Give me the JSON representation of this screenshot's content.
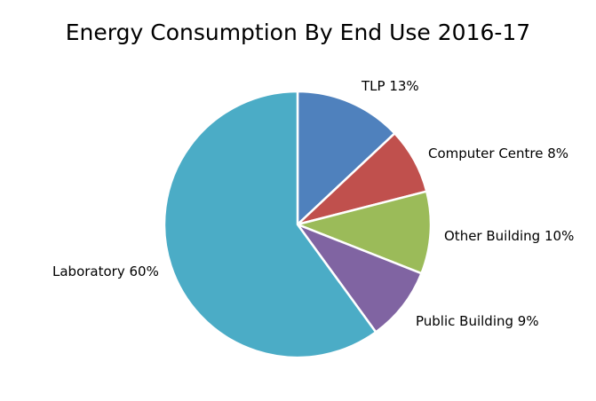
{
  "chart_data": {
    "type": "pie",
    "title": "Energy Consumption  By End Use 2016-17",
    "slices": [
      {
        "label": "TLP",
        "value": 13,
        "display": "TLP 13%",
        "color": "#4F81BD"
      },
      {
        "label": "Computer Centre",
        "value": 8,
        "display": "Computer Centre 8%",
        "color": "#C0504D"
      },
      {
        "label": "Other Building",
        "value": 10,
        "display": "Other Building 10%",
        "color": "#9BBB59"
      },
      {
        "label": "Public Building",
        "value": 9,
        "display": "Public Building 9%",
        "color": "#8064A2"
      },
      {
        "label": "Laboratory",
        "value": 60,
        "display": "Laboratory 60%",
        "color": "#4BACC6"
      }
    ],
    "legend": "none",
    "start_angle": "12 o'clock",
    "direction": "clockwise"
  }
}
